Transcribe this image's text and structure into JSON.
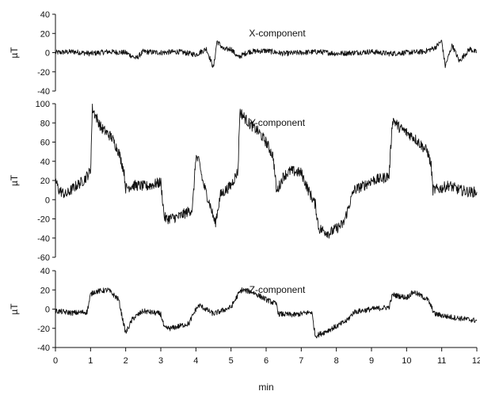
{
  "chart_data": [
    {
      "type": "line",
      "title": "X-component",
      "ylabel": "µT",
      "xlabel": "",
      "ylim": [
        -40,
        40
      ],
      "yticks": [
        -40,
        -20,
        0,
        20,
        40
      ],
      "ytick_labels": [
        "-40",
        "-20",
        "0",
        "20",
        "40"
      ],
      "xlim": [
        0,
        12
      ],
      "grid": false,
      "series": [
        {
          "x": [
            0,
            0.5,
            1,
            1.5,
            2,
            2.3,
            2.5,
            3,
            3.5,
            4,
            4.3,
            4.5,
            4.6,
            4.8,
            5,
            5.2,
            5.5,
            6,
            6.5,
            7,
            7.5,
            8,
            8.5,
            9,
            9.5,
            10,
            10.5,
            10.8,
            11,
            11.1,
            11.3,
            11.5,
            11.8,
            12
          ],
          "y": [
            0,
            1,
            -1,
            1,
            0,
            -6,
            1,
            0,
            1,
            -2,
            4,
            -16,
            12,
            3,
            4,
            -5,
            1,
            2,
            -1,
            0,
            1,
            -1,
            0,
            1,
            -1,
            0,
            1,
            5,
            12,
            -14,
            8,
            -9,
            4,
            0
          ]
        }
      ]
    },
    {
      "type": "line",
      "title": "Y-component",
      "ylabel": "µT",
      "xlabel": "",
      "ylim": [
        -60,
        100
      ],
      "yticks": [
        -60,
        -40,
        -20,
        0,
        20,
        40,
        60,
        80,
        100
      ],
      "ytick_labels": [
        "-60",
        "-40",
        "-20",
        "0",
        "20",
        "40",
        "60",
        "80",
        "100"
      ],
      "xlim": [
        0,
        12
      ],
      "grid": false,
      "series": [
        {
          "x": [
            0,
            0.1,
            0.3,
            0.5,
            0.8,
            1.0,
            1.05,
            1.3,
            1.6,
            1.8,
            1.95,
            2.0,
            2.2,
            2.6,
            3.0,
            3.1,
            3.15,
            3.5,
            3.9,
            4.0,
            4.1,
            4.2,
            4.4,
            4.55,
            4.7,
            5.0,
            5.2,
            5.25,
            5.5,
            5.8,
            6.0,
            6.2,
            6.3,
            6.5,
            6.7,
            7.0,
            7.2,
            7.4,
            7.5,
            7.8,
            8.2,
            8.5,
            8.8,
            9.0,
            9.3,
            9.5,
            9.6,
            9.8,
            10.2,
            10.6,
            10.7,
            10.75,
            11.0,
            11.2,
            11.5,
            11.8,
            12.0
          ],
          "y": [
            20,
            10,
            5,
            12,
            20,
            30,
            95,
            75,
            65,
            50,
            30,
            12,
            15,
            14,
            18,
            -18,
            -20,
            -18,
            -10,
            45,
            38,
            18,
            -5,
            -25,
            5,
            15,
            30,
            92,
            80,
            70,
            60,
            45,
            8,
            25,
            30,
            28,
            10,
            -5,
            -30,
            -35,
            -25,
            10,
            15,
            20,
            22,
            25,
            84,
            75,
            65,
            50,
            35,
            10,
            12,
            15,
            10,
            8,
            8
          ]
        }
      ]
    },
    {
      "type": "line",
      "title": "Z-component",
      "ylabel": "µT",
      "xlabel": "min",
      "ylim": [
        -40,
        40
      ],
      "yticks": [
        -40,
        -20,
        0,
        20,
        40
      ],
      "ytick_labels": [
        "-40",
        "-20",
        "0",
        "20",
        "40"
      ],
      "xlim": [
        0,
        12
      ],
      "xticks": [
        0,
        1,
        2,
        3,
        4,
        5,
        6,
        7,
        8,
        9,
        10,
        11,
        12
      ],
      "xtick_labels": [
        "0",
        "1",
        "2",
        "3",
        "4",
        "5",
        "6",
        "7",
        "8",
        "9",
        "10",
        "11",
        "12"
      ],
      "grid": false,
      "series": [
        {
          "x": [
            0,
            0.5,
            0.9,
            1.0,
            1.1,
            1.5,
            1.8,
            1.9,
            2.0,
            2.2,
            2.5,
            3.0,
            3.1,
            3.3,
            3.8,
            4.0,
            4.1,
            4.5,
            5.0,
            5.2,
            5.3,
            5.6,
            6.0,
            6.3,
            6.35,
            6.8,
            7.3,
            7.4,
            7.6,
            8.0,
            8.3,
            8.5,
            9.0,
            9.5,
            9.6,
            10.0,
            10.2,
            10.6,
            10.8,
            11.2,
            11.6,
            12.0
          ],
          "y": [
            -2,
            -4,
            -3,
            15,
            18,
            20,
            10,
            -8,
            -25,
            -10,
            -2,
            -5,
            -20,
            -20,
            -15,
            0,
            4,
            -5,
            2,
            15,
            20,
            18,
            10,
            5,
            -5,
            -6,
            -3,
            -28,
            -25,
            -18,
            -12,
            -3,
            0,
            2,
            15,
            12,
            18,
            10,
            -5,
            -8,
            -10,
            -12
          ]
        }
      ]
    }
  ]
}
